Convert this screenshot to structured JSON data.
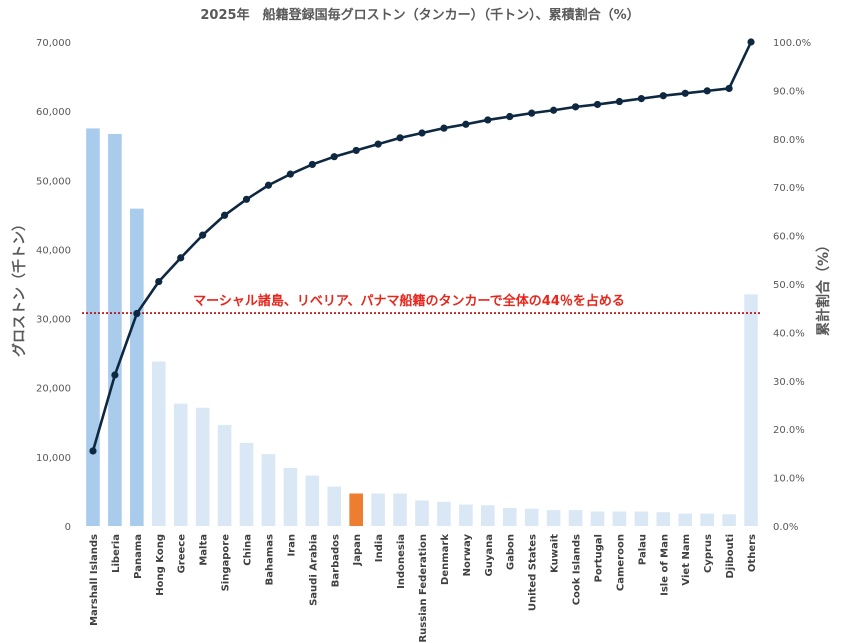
{
  "chart_data": {
    "type": "bar",
    "title": "2025年　船籍登録国毎グロストン（タンカー）（千トン）、累積割合（%）",
    "ylabel": "グロストン（千トン）",
    "y2label": "累計割合（%）",
    "ylim": [
      0,
      70000
    ],
    "y2lim": [
      0,
      100
    ],
    "yticks": [
      "0",
      "10,000",
      "20,000",
      "30,000",
      "40,000",
      "50,000",
      "60,000",
      "70,000"
    ],
    "y2ticks": [
      "0.0%",
      "10.0%",
      "20.0%",
      "30.0%",
      "40.0%",
      "50.0%",
      "60.0%",
      "70.0%",
      "80.0%",
      "90.0%",
      "100.0%"
    ],
    "grid": false,
    "categories": [
      "Marshall Islands",
      "Liberia",
      "Panama",
      "Hong Kong",
      "Greece",
      "Malta",
      "Singapore",
      "China",
      "Bahamas",
      "Iran",
      "Saudi Arabia",
      "Barbados",
      "Japan",
      "India",
      "Indonesia",
      "Russian Federation",
      "Denmark",
      "Norway",
      "Guyana",
      "Gabon",
      "United States",
      "Kuwait",
      "Cook Islands",
      "Portugal",
      "Cameroon",
      "Palau",
      "Isle of Man",
      "Viet Nam",
      "Cyprus",
      "Djibouti",
      "Others"
    ],
    "series": [
      {
        "type": "bar",
        "values": [
          57500,
          56700,
          45900,
          23800,
          17700,
          17100,
          14600,
          12000,
          10400,
          8400,
          7300,
          5700,
          4700,
          4700,
          4700,
          3700,
          3500,
          3100,
          3000,
          2600,
          2500,
          2300,
          2300,
          2100,
          2100,
          2100,
          2000,
          1800,
          1800,
          1700,
          33500
        ]
      },
      {
        "type": "line",
        "values": [
          15.5,
          31.2,
          43.9,
          50.5,
          55.4,
          60.1,
          64.2,
          67.5,
          70.4,
          72.7,
          74.7,
          76.3,
          77.6,
          78.9,
          80.2,
          81.2,
          82.2,
          83.0,
          83.9,
          84.6,
          85.3,
          85.9,
          86.6,
          87.1,
          87.7,
          88.3,
          88.9,
          89.4,
          89.9,
          90.4,
          100.0
        ]
      }
    ],
    "reference_line": {
      "y2": 44,
      "label": "マーシャル諸島、リベリア、パナマ船籍のタンカーで全体の44％を占める"
    },
    "colors": {
      "bar_top3": "#a9ccec",
      "bar_other": "#dae8f6",
      "bar_japan": "#ed7d31",
      "line": "#0e2841",
      "reference": "#c00000",
      "annotation": "#e8261c"
    }
  }
}
